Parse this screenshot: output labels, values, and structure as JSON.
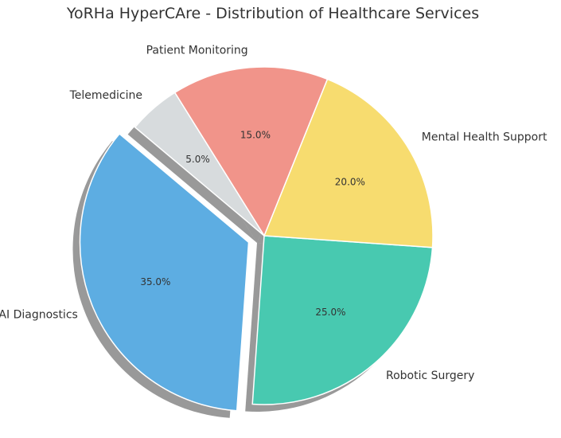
{
  "chart_data": {
    "type": "pie",
    "title": "YoRHa HyperCAre - Distribution of Healthcare Services",
    "start_angle_deg": 140,
    "shadow": true,
    "slices": [
      {
        "label": "AI Diagnostics",
        "value": 35,
        "pct_label": "35.0%",
        "color": "#5DADE2",
        "explode": true
      },
      {
        "label": "Robotic Surgery",
        "value": 25,
        "pct_label": "25.0%",
        "color": "#48C9B0",
        "explode": false
      },
      {
        "label": "Mental Health Support",
        "value": 20,
        "pct_label": "20.0%",
        "color": "#F7DC6F",
        "explode": false
      },
      {
        "label": "Patient Monitoring",
        "value": 15,
        "pct_label": "15.0%",
        "color": "#F1948A",
        "explode": false
      },
      {
        "label": "Telemedicine",
        "value": 5,
        "pct_label": "5.0%",
        "color": "#D7DBDD",
        "explode": false
      }
    ]
  }
}
